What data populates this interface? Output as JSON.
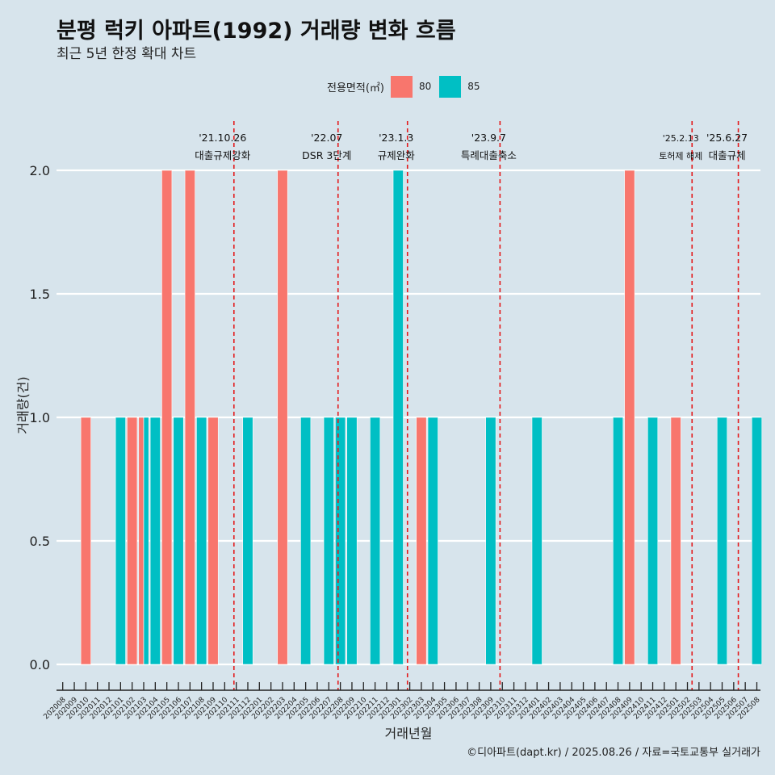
{
  "title": "분평 럭키 아파트(1992) 거래량 변화 흐름",
  "subtitle": "최근 5년 한정 확대 차트",
  "caption": "©디아파트(dapt.kr) / 2025.08.26 / 자료=국토교통부 실거래가",
  "legend": {
    "title": "전용면적(㎡)",
    "items": [
      {
        "label": "80",
        "color": "#f8766d"
      },
      {
        "label": "85",
        "color": "#00bfc4"
      }
    ]
  },
  "chart_data": {
    "type": "bar",
    "title": "분평 럭키 아파트(1992) 거래량 변화 흐름",
    "xlabel": "거래년월",
    "ylabel": "거래량(건)",
    "ylim": [
      0,
      2.0
    ],
    "yticks": [
      "0.0",
      "0.5",
      "1.0",
      "1.5",
      "2.0"
    ],
    "grid": true,
    "legend_position": "top",
    "months": [
      "202008",
      "202009",
      "202010",
      "202011",
      "202012",
      "202101",
      "202102",
      "202103",
      "202104",
      "202105",
      "202106",
      "202107",
      "202108",
      "202109",
      "202110",
      "202111",
      "202112",
      "202201",
      "202202",
      "202203",
      "202204",
      "202205",
      "202206",
      "202207",
      "202208",
      "202209",
      "202210",
      "202211",
      "202212",
      "202301",
      "202302",
      "202303",
      "202304",
      "202305",
      "202306",
      "202307",
      "202308",
      "202309",
      "202310",
      "202311",
      "202312",
      "202401",
      "202402",
      "202403",
      "202404",
      "202405",
      "202406",
      "202407",
      "202408",
      "202409",
      "202410",
      "202411",
      "202412",
      "202501",
      "202502",
      "202503",
      "202504",
      "202505",
      "202506",
      "202507",
      "202508"
    ],
    "series": [
      {
        "name": "80",
        "color": "#f8766d",
        "points": [
          {
            "month": "202010",
            "value": 1
          },
          {
            "month": "202102",
            "value": 1
          },
          {
            "month": "202103",
            "value": 1
          },
          {
            "month": "202105",
            "value": 2
          },
          {
            "month": "202107",
            "value": 2
          },
          {
            "month": "202109",
            "value": 1
          },
          {
            "month": "202203",
            "value": 2
          },
          {
            "month": "202303",
            "value": 1
          },
          {
            "month": "202409",
            "value": 2
          },
          {
            "month": "202501",
            "value": 1
          }
        ]
      },
      {
        "name": "85",
        "color": "#00bfc4",
        "points": [
          {
            "month": "202101",
            "value": 1
          },
          {
            "month": "202103",
            "value": 1
          },
          {
            "month": "202104",
            "value": 1
          },
          {
            "month": "202106",
            "value": 1
          },
          {
            "month": "202108",
            "value": 1
          },
          {
            "month": "202112",
            "value": 1
          },
          {
            "month": "202205",
            "value": 1
          },
          {
            "month": "202207",
            "value": 1
          },
          {
            "month": "202208",
            "value": 1
          },
          {
            "month": "202209",
            "value": 1
          },
          {
            "month": "202211",
            "value": 1
          },
          {
            "month": "202301",
            "value": 2
          },
          {
            "month": "202304",
            "value": 1
          },
          {
            "month": "202309",
            "value": 1
          },
          {
            "month": "202401",
            "value": 1
          },
          {
            "month": "202408",
            "value": 1
          },
          {
            "month": "202411",
            "value": 1
          },
          {
            "month": "202505",
            "value": 1
          },
          {
            "month": "202508",
            "value": 1
          }
        ]
      }
    ],
    "annotations": [
      {
        "position": 14.8,
        "date": "'21.10.26",
        "label": "대출규제강화",
        "small": false
      },
      {
        "position": 23.8,
        "date": "'22.07",
        "label": "DSR 3단계",
        "small": false
      },
      {
        "position": 29.8,
        "date": "'23.1.3",
        "label": "규제완화",
        "small": false
      },
      {
        "position": 37.8,
        "date": "'23.9.7",
        "label": "특례대출축소",
        "small": false
      },
      {
        "position": 54.4,
        "date": "'25.2.13",
        "label": "토허제 해제",
        "small": true
      },
      {
        "position": 58.4,
        "date": "'25.6.27",
        "label": "대출규제",
        "small": false
      }
    ],
    "line_color": "#e41a1c"
  }
}
